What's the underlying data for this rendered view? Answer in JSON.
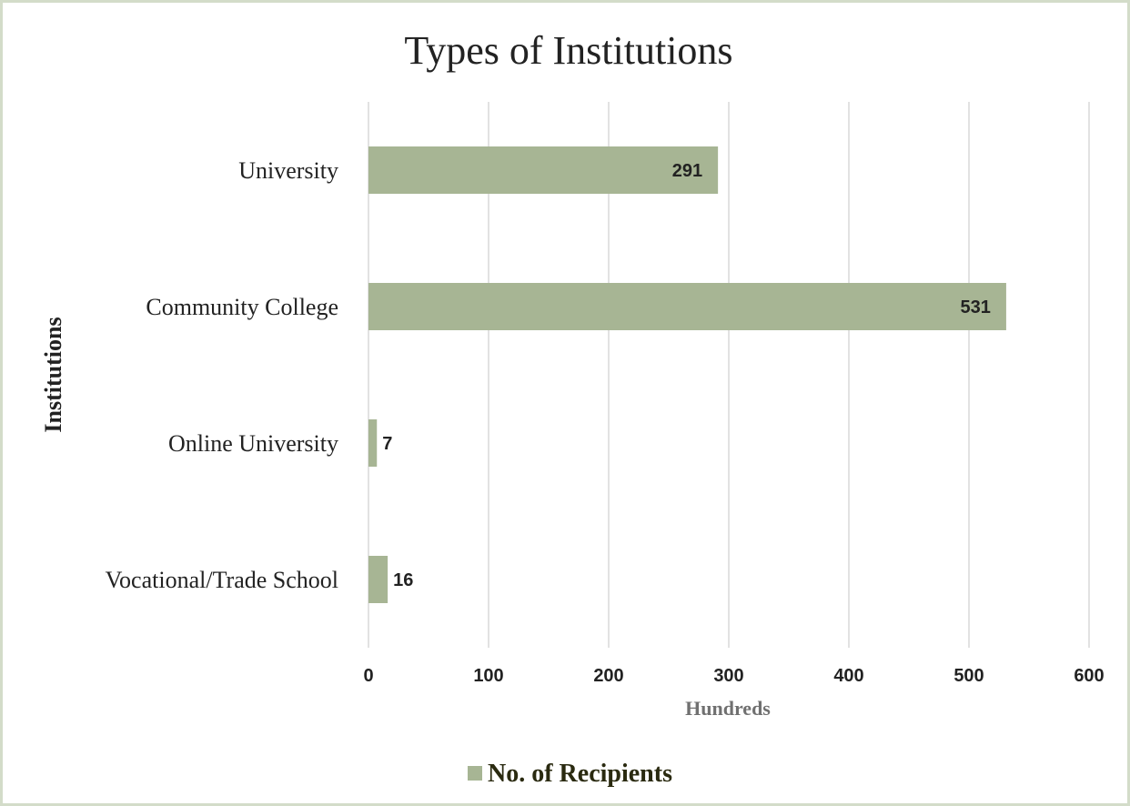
{
  "chart_data": {
    "type": "bar",
    "orientation": "horizontal",
    "title": "Types of Institutions",
    "xlabel": "Hundreds",
    "ylabel": "Institutions",
    "categories": [
      "University",
      "Community College",
      "Online University",
      "Vocational/Trade School"
    ],
    "series": [
      {
        "name": "No. of Recipients",
        "values": [
          291,
          531,
          7,
          16
        ],
        "color": "#a7b594"
      }
    ],
    "xlim": [
      0,
      600
    ],
    "xticks": [
      "0",
      "100",
      "200",
      "300",
      "400",
      "500",
      "600"
    ],
    "grid": true,
    "legend_position": "bottom"
  }
}
